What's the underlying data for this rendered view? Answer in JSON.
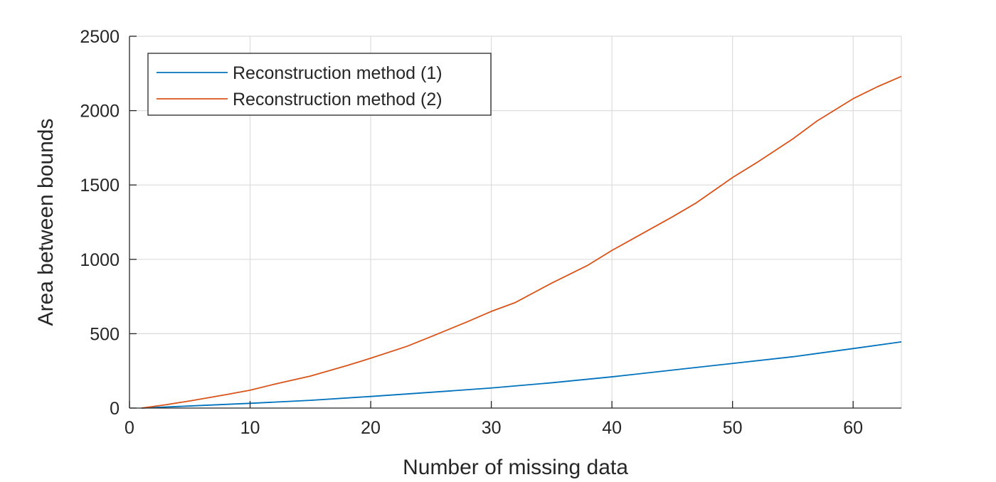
{
  "chart_data": {
    "type": "line",
    "title": "",
    "xlabel": "Number of missing data",
    "ylabel": "Area between bounds",
    "xlim": [
      0,
      64
    ],
    "ylim": [
      0,
      2500
    ],
    "xticks": [
      0,
      10,
      20,
      30,
      40,
      50,
      60
    ],
    "yticks": [
      0,
      500,
      1000,
      1500,
      2000,
      2500
    ],
    "grid": true,
    "legend_position": "top-left",
    "series": [
      {
        "name": "Reconstruction method (1)",
        "color": "#0072BD",
        "x": [
          1,
          5,
          10,
          15,
          20,
          25,
          30,
          35,
          40,
          45,
          50,
          55,
          60,
          64
        ],
        "values": [
          0,
          14,
          32,
          52,
          78,
          106,
          135,
          170,
          210,
          255,
          300,
          345,
          400,
          445
        ]
      },
      {
        "name": "Reconstruction method (2)",
        "color": "#D95319",
        "x": [
          1,
          3,
          5,
          8,
          10,
          12,
          15,
          18,
          20,
          23,
          25,
          28,
          30,
          32,
          35,
          38,
          40,
          42,
          45,
          47,
          50,
          52,
          55,
          57,
          60,
          62,
          64
        ],
        "values": [
          0,
          22,
          48,
          90,
          120,
          160,
          215,
          285,
          335,
          415,
          480,
          580,
          650,
          710,
          840,
          960,
          1060,
          1150,
          1285,
          1380,
          1550,
          1650,
          1810,
          1930,
          2080,
          2160,
          2230
        ]
      }
    ]
  }
}
